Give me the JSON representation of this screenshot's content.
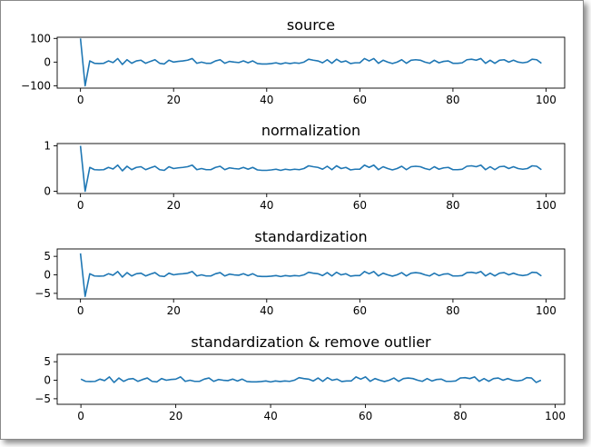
{
  "colors": {
    "line": "#1f77b4",
    "axes": "#000000",
    "background": "#ffffff"
  },
  "chart_data": [
    {
      "type": "line",
      "title": "source",
      "xlabel": "",
      "ylabel": "",
      "xlim": [
        -5,
        104
      ],
      "ylim": [
        -110,
        105
      ],
      "xticks": [
        0,
        20,
        40,
        60,
        80,
        100
      ],
      "yticks": [
        100,
        0,
        -100
      ],
      "ytick_labels": [
        "100",
        "0",
        "−100"
      ],
      "grid": false,
      "series": [
        {
          "x": [
            0,
            1,
            2,
            3,
            4,
            5,
            6,
            7,
            8,
            9,
            10,
            11,
            12,
            13,
            14,
            15,
            16,
            17,
            18,
            19,
            20,
            21,
            22,
            23,
            24,
            25,
            26,
            27,
            28,
            29,
            30,
            31,
            32,
            33,
            34,
            35,
            36,
            37,
            38,
            39,
            40,
            41,
            42,
            43,
            44,
            45,
            46,
            47,
            48,
            49,
            50,
            51,
            52,
            53,
            54,
            55,
            56,
            57,
            58,
            59,
            60,
            61,
            62,
            63,
            64,
            65,
            66,
            67,
            68,
            69,
            70,
            71,
            72,
            73,
            74,
            75,
            76,
            77,
            78,
            79,
            80,
            81,
            82,
            83,
            84,
            85,
            86,
            87,
            88,
            89,
            90,
            91,
            92,
            93,
            94,
            95,
            96,
            97,
            98,
            99
          ],
          "y": [
            100,
            -100,
            5,
            -5,
            -6,
            -5,
            5,
            -2,
            15,
            -10,
            10,
            -5,
            5,
            8,
            -5,
            3,
            10,
            -5,
            -8,
            8,
            0,
            3,
            5,
            8,
            15,
            -5,
            0,
            -5,
            -5,
            5,
            10,
            -5,
            3,
            0,
            -2,
            5,
            -3,
            5,
            -6,
            -8,
            -8,
            -6,
            -3,
            -8,
            -3,
            -6,
            -3,
            -5,
            0,
            12,
            8,
            5,
            -3,
            10,
            -5,
            12,
            0,
            5,
            -6,
            -3,
            -3,
            15,
            5,
            15,
            -5,
            8,
            0,
            -6,
            0,
            10,
            -5,
            8,
            10,
            8,
            0,
            -5,
            8,
            -3,
            3,
            5,
            -5,
            -5,
            -3,
            10,
            12,
            8,
            15,
            -5,
            8,
            -5,
            8,
            10,
            0,
            8,
            0,
            -3,
            0,
            12,
            10,
            -5
          ]
        }
      ]
    },
    {
      "type": "line",
      "title": "normalization",
      "xlabel": "",
      "ylabel": "",
      "xlim": [
        -5,
        104
      ],
      "ylim": [
        -0.05,
        1.05
      ],
      "xticks": [
        0,
        20,
        40,
        60,
        80,
        100
      ],
      "yticks": [
        1,
        0
      ],
      "ytick_labels": [
        "1",
        "0"
      ],
      "grid": false,
      "series": [
        {
          "x": [
            0,
            1,
            2,
            3,
            4,
            5,
            6,
            7,
            8,
            9,
            10,
            11,
            12,
            13,
            14,
            15,
            16,
            17,
            18,
            19,
            20,
            21,
            22,
            23,
            24,
            25,
            26,
            27,
            28,
            29,
            30,
            31,
            32,
            33,
            34,
            35,
            36,
            37,
            38,
            39,
            40,
            41,
            42,
            43,
            44,
            45,
            46,
            47,
            48,
            49,
            50,
            51,
            52,
            53,
            54,
            55,
            56,
            57,
            58,
            59,
            60,
            61,
            62,
            63,
            64,
            65,
            66,
            67,
            68,
            69,
            70,
            71,
            72,
            73,
            74,
            75,
            76,
            77,
            78,
            79,
            80,
            81,
            82,
            83,
            84,
            85,
            86,
            87,
            88,
            89,
            90,
            91,
            92,
            93,
            94,
            95,
            96,
            97,
            98,
            99
          ],
          "y": [
            1,
            0,
            0.525,
            0.475,
            0.47,
            0.475,
            0.525,
            0.49,
            0.575,
            0.45,
            0.55,
            0.475,
            0.525,
            0.54,
            0.475,
            0.515,
            0.55,
            0.475,
            0.46,
            0.54,
            0.5,
            0.515,
            0.525,
            0.54,
            0.575,
            0.475,
            0.5,
            0.475,
            0.475,
            0.525,
            0.55,
            0.475,
            0.515,
            0.5,
            0.49,
            0.525,
            0.485,
            0.525,
            0.47,
            0.46,
            0.46,
            0.47,
            0.485,
            0.46,
            0.485,
            0.47,
            0.485,
            0.475,
            0.5,
            0.56,
            0.54,
            0.525,
            0.485,
            0.55,
            0.475,
            0.56,
            0.5,
            0.525,
            0.47,
            0.485,
            0.485,
            0.575,
            0.525,
            0.575,
            0.475,
            0.54,
            0.5,
            0.47,
            0.5,
            0.55,
            0.475,
            0.54,
            0.55,
            0.54,
            0.5,
            0.475,
            0.54,
            0.485,
            0.515,
            0.525,
            0.475,
            0.475,
            0.485,
            0.55,
            0.56,
            0.54,
            0.575,
            0.475,
            0.54,
            0.475,
            0.54,
            0.55,
            0.5,
            0.54,
            0.5,
            0.485,
            0.5,
            0.56,
            0.55,
            0.475
          ]
        }
      ]
    },
    {
      "type": "line",
      "title": "standardization",
      "xlabel": "",
      "ylabel": "",
      "xlim": [
        -5,
        104
      ],
      "ylim": [
        -6.5,
        7
      ],
      "xticks": [
        0,
        20,
        40,
        60,
        80,
        100
      ],
      "yticks": [
        5,
        0,
        -5
      ],
      "ytick_labels": [
        "5",
        "0",
        "−5"
      ],
      "grid": false,
      "series": [
        {
          "x": [
            0,
            1,
            2,
            3,
            4,
            5,
            6,
            7,
            8,
            9,
            10,
            11,
            12,
            13,
            14,
            15,
            16,
            17,
            18,
            19,
            20,
            21,
            22,
            23,
            24,
            25,
            26,
            27,
            28,
            29,
            30,
            31,
            32,
            33,
            34,
            35,
            36,
            37,
            38,
            39,
            40,
            41,
            42,
            43,
            44,
            45,
            46,
            47,
            48,
            49,
            50,
            51,
            52,
            53,
            54,
            55,
            56,
            57,
            58,
            59,
            60,
            61,
            62,
            63,
            64,
            65,
            66,
            67,
            68,
            69,
            70,
            71,
            72,
            73,
            74,
            75,
            76,
            77,
            78,
            79,
            80,
            81,
            82,
            83,
            84,
            85,
            86,
            87,
            88,
            89,
            90,
            91,
            92,
            93,
            94,
            95,
            96,
            97,
            98,
            99
          ],
          "y": [
            5.8,
            -5.8,
            0.3,
            -0.3,
            -0.35,
            -0.3,
            0.3,
            -0.1,
            0.9,
            -0.6,
            0.6,
            -0.3,
            0.3,
            0.45,
            -0.3,
            0.2,
            0.6,
            -0.3,
            -0.45,
            0.45,
            0,
            0.2,
            0.3,
            0.45,
            0.9,
            -0.3,
            0,
            -0.3,
            -0.3,
            0.3,
            0.6,
            -0.3,
            0.2,
            0,
            -0.1,
            0.3,
            -0.2,
            0.3,
            -0.35,
            -0.45,
            -0.45,
            -0.35,
            -0.2,
            -0.45,
            -0.2,
            -0.35,
            -0.2,
            -0.3,
            0,
            0.7,
            0.45,
            0.3,
            -0.2,
            0.6,
            -0.3,
            0.7,
            0,
            0.3,
            -0.35,
            -0.2,
            -0.2,
            0.9,
            0.3,
            0.9,
            -0.3,
            0.45,
            0,
            -0.35,
            0,
            0.6,
            -0.3,
            0.45,
            0.6,
            0.45,
            0,
            -0.3,
            0.45,
            -0.2,
            0.2,
            0.3,
            -0.3,
            -0.3,
            -0.2,
            0.6,
            0.7,
            0.45,
            0.9,
            -0.3,
            0.45,
            -0.3,
            0.45,
            0.6,
            0,
            0.45,
            0,
            -0.2,
            0,
            0.7,
            0.6,
            -0.3
          ]
        }
      ]
    },
    {
      "type": "line",
      "title": "standardization & remove outlier",
      "xlabel": "",
      "ylabel": "",
      "xlim": [
        -5,
        102
      ],
      "ylim": [
        -6.5,
        7
      ],
      "xticks": [
        0,
        20,
        40,
        60,
        80,
        100
      ],
      "yticks": [
        5,
        0,
        -5
      ],
      "ytick_labels": [
        "5",
        "0",
        "−5"
      ],
      "grid": false,
      "series": [
        {
          "x": [
            0,
            1,
            2,
            3,
            4,
            5,
            6,
            7,
            8,
            9,
            10,
            11,
            12,
            13,
            14,
            15,
            16,
            17,
            18,
            19,
            20,
            21,
            22,
            23,
            24,
            25,
            26,
            27,
            28,
            29,
            30,
            31,
            32,
            33,
            34,
            35,
            36,
            37,
            38,
            39,
            40,
            41,
            42,
            43,
            44,
            45,
            46,
            47,
            48,
            49,
            50,
            51,
            52,
            53,
            54,
            55,
            56,
            57,
            58,
            59,
            60,
            61,
            62,
            63,
            64,
            65,
            66,
            67,
            68,
            69,
            70,
            71,
            72,
            73,
            74,
            75,
            76,
            77,
            78,
            79,
            80,
            81,
            82,
            83,
            84,
            85,
            86,
            87,
            88,
            89,
            90,
            91,
            92,
            93,
            94,
            95,
            96,
            97
          ],
          "y": [
            0.3,
            -0.3,
            -0.35,
            -0.3,
            0.3,
            -0.1,
            0.9,
            -0.6,
            0.6,
            -0.3,
            0.3,
            0.45,
            -0.3,
            0.2,
            0.6,
            -0.3,
            -0.45,
            0.45,
            0,
            0.2,
            0.3,
            0.9,
            -0.3,
            0,
            -0.3,
            -0.3,
            0.3,
            0.6,
            -0.3,
            0.2,
            0,
            -0.1,
            0.3,
            -0.2,
            0.3,
            -0.35,
            -0.45,
            -0.45,
            -0.35,
            -0.2,
            -0.45,
            -0.2,
            -0.35,
            -0.2,
            -0.3,
            0,
            0.7,
            0.45,
            0.3,
            -0.2,
            0.6,
            -0.3,
            0.7,
            0,
            0.3,
            -0.35,
            -0.2,
            -0.2,
            0.9,
            0.3,
            0.9,
            -0.3,
            0.45,
            0,
            -0.35,
            0,
            0.6,
            -0.3,
            0.45,
            0.6,
            0.45,
            0,
            -0.3,
            0.45,
            -0.2,
            0.2,
            0.3,
            -0.3,
            -0.3,
            -0.2,
            0.6,
            0.7,
            0.45,
            0.9,
            -0.3,
            0.45,
            -0.3,
            0.45,
            0.6,
            0,
            0.45,
            0,
            -0.2,
            0,
            0.7,
            0.6,
            -0.6,
            0
          ]
        }
      ]
    }
  ]
}
